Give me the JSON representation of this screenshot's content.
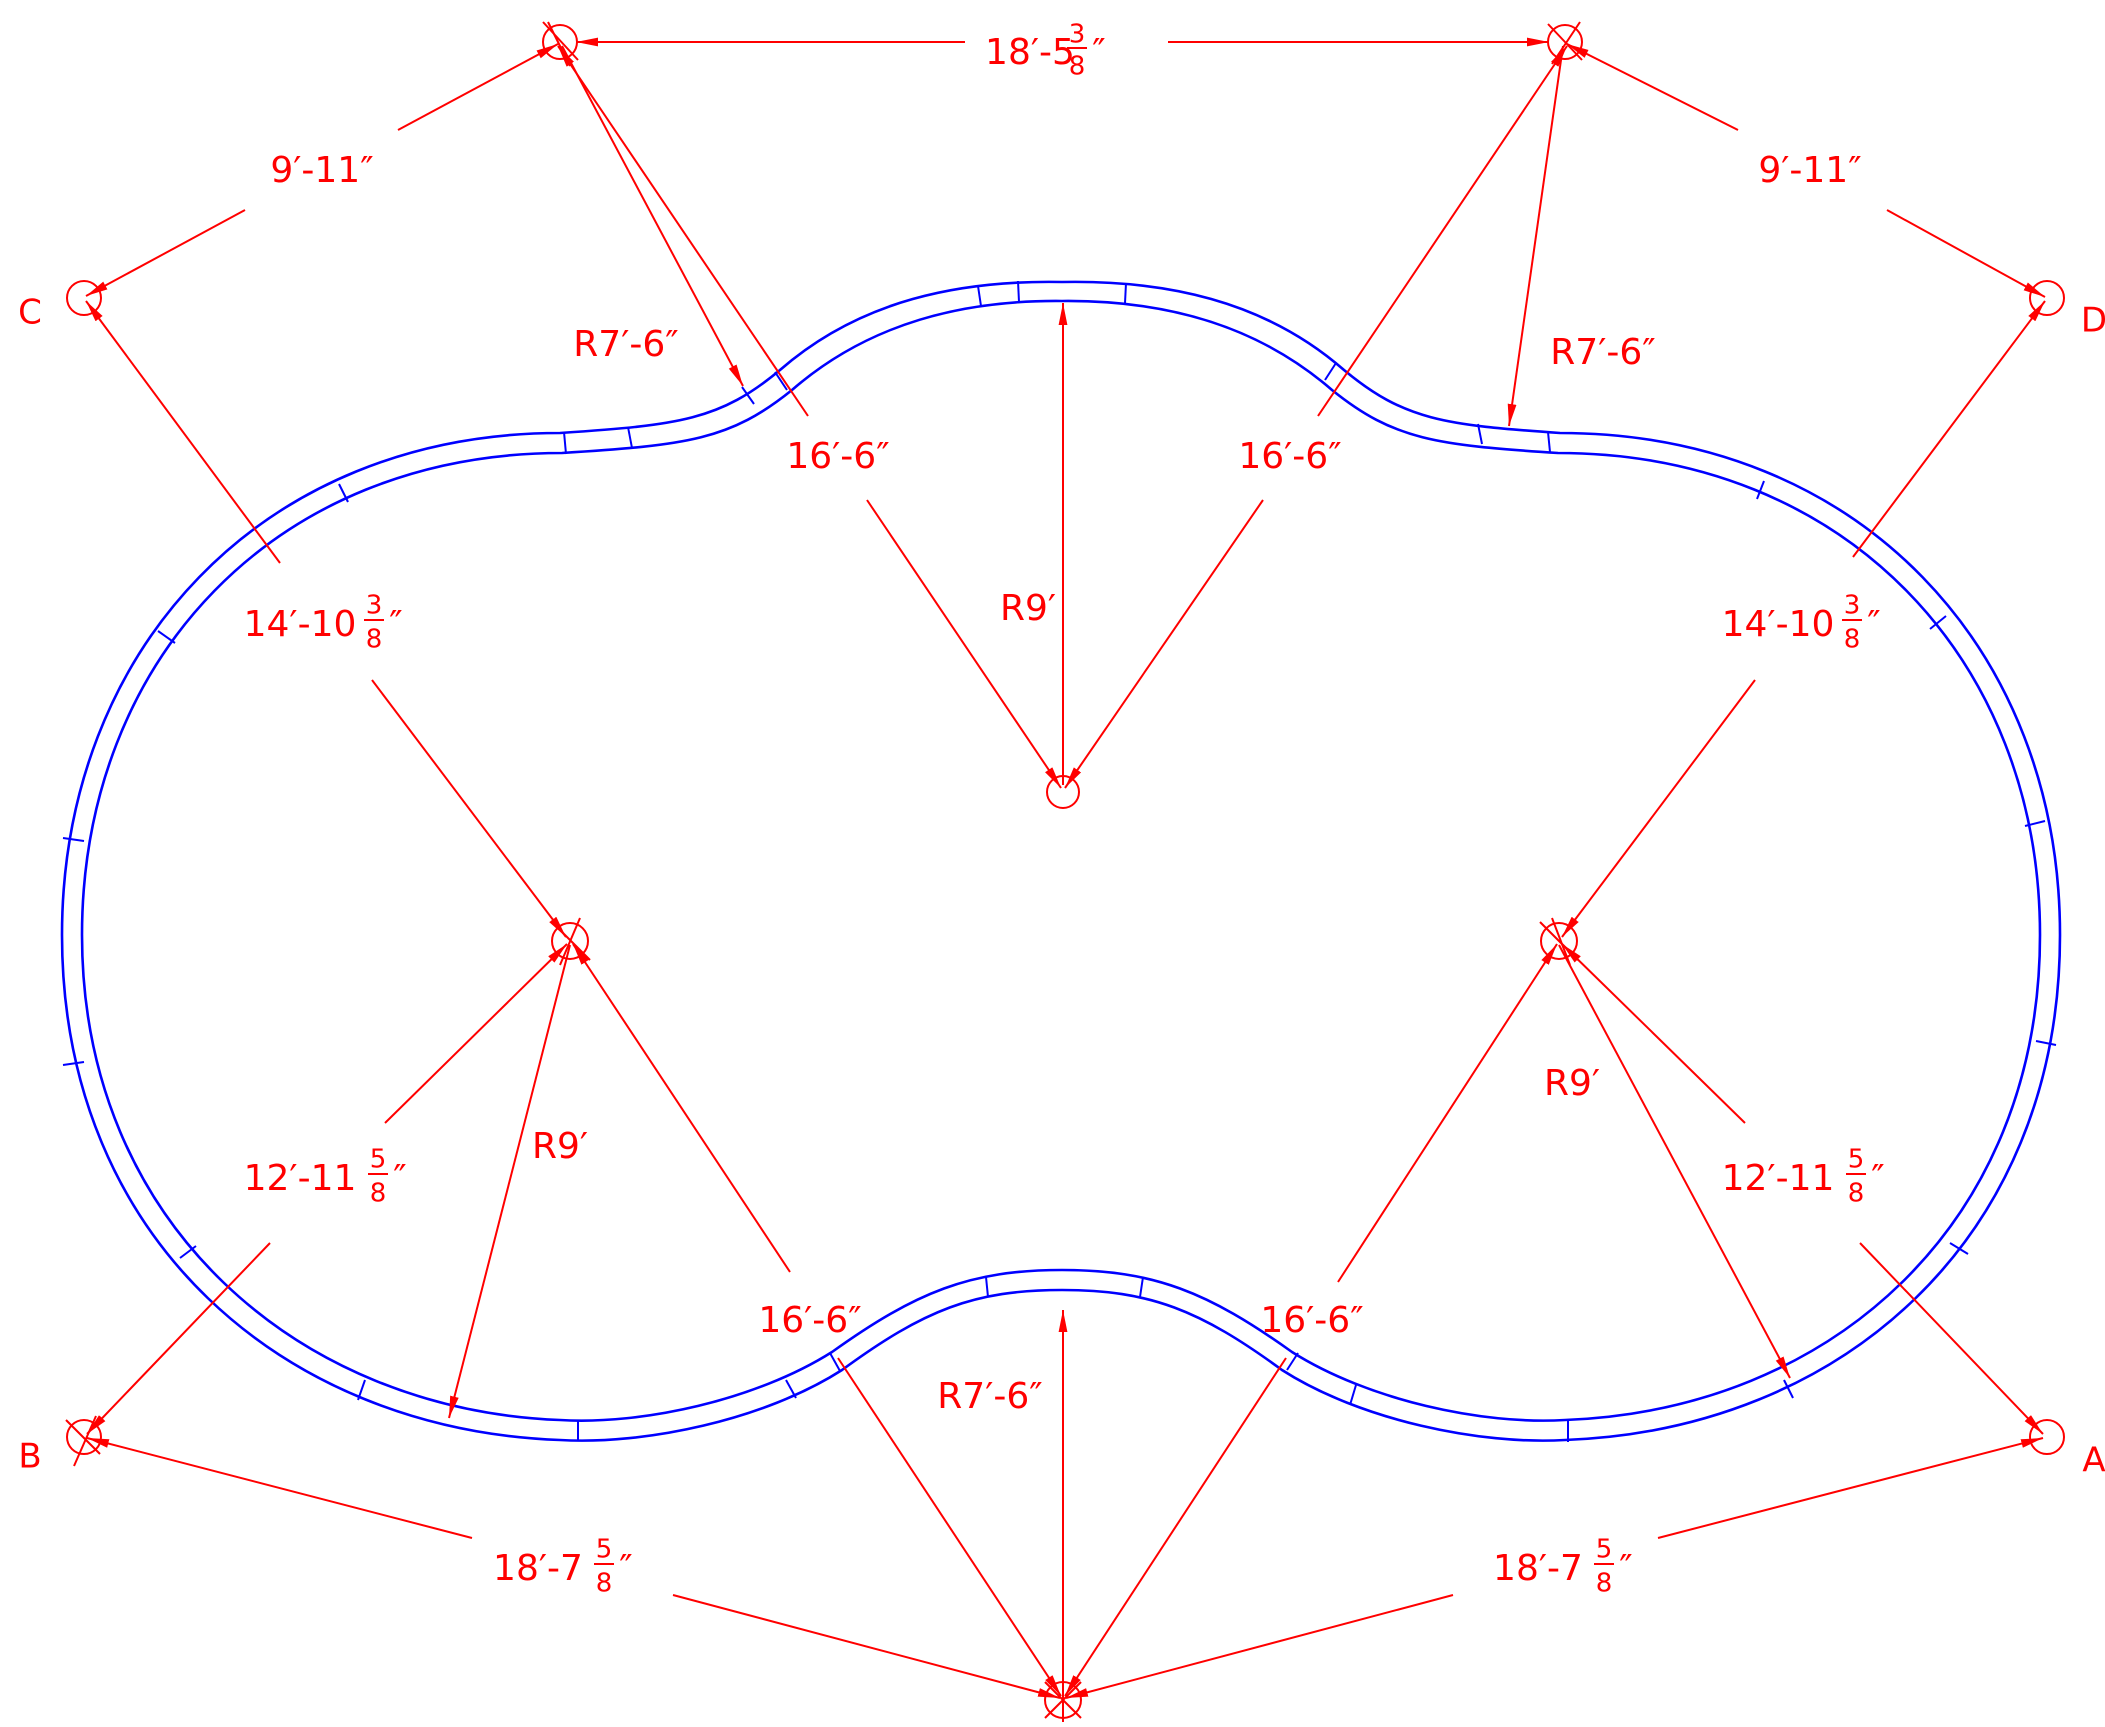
{
  "colors": {
    "track": "#0000ff",
    "dimension": "#ff0000",
    "background": "#ffffff"
  },
  "point_labels": {
    "a": "A",
    "b": "B",
    "c": "C",
    "d": "D"
  },
  "dimensions": {
    "top_span": {
      "main": "18′-5",
      "num": "3",
      "den": "8",
      "tail": "″"
    },
    "top_left_offset": {
      "main": "9′-11″"
    },
    "top_right_offset": {
      "main": "9′-11″"
    },
    "left_upper_radius": {
      "main": "R7′-6″"
    },
    "right_upper_radius": {
      "main": "R7′-6″"
    },
    "top_chord_left": {
      "main": "16′-6″"
    },
    "top_chord_right": {
      "main": "16′-6″"
    },
    "center_top_radius": {
      "main": "R9′"
    },
    "left_diag": {
      "main": "14′-10",
      "num": "3",
      "den": "8",
      "tail": "″"
    },
    "right_diag": {
      "main": "14′-10",
      "num": "3",
      "den": "8",
      "tail": "″"
    },
    "left_lower_radius": {
      "main": "R9′"
    },
    "right_lower_radius": {
      "main": "R9′"
    },
    "left_lower_diag": {
      "main": "12′-11",
      "num": "5",
      "den": "8",
      "tail": "″"
    },
    "right_lower_diag": {
      "main": "12′-11",
      "num": "5",
      "den": "8",
      "tail": "″"
    },
    "bottom_chord_left": {
      "main": "16′-6″"
    },
    "bottom_chord_right": {
      "main": "16′-6″"
    },
    "center_bottom_radius": {
      "main": "R7′-6″"
    },
    "bottom_left_span": {
      "main": "18′-7",
      "num": "5",
      "den": "8",
      "tail": "″"
    },
    "bottom_right_span": {
      "main": "18′-7",
      "num": "5",
      "den": "8",
      "tail": "″"
    }
  }
}
